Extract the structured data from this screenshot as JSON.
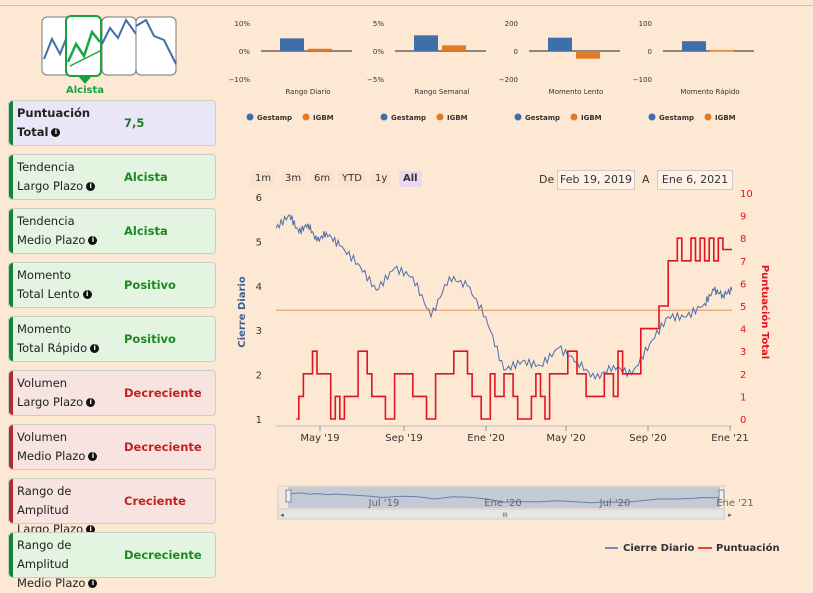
{
  "header": {
    "trend_thumbnail_label": "Alcista"
  },
  "cards": [
    {
      "id": "puntuacion",
      "line1": "Puntuación",
      "line2": "Total",
      "value": "7,5",
      "tone": "purple",
      "value_color": "#1a7a2a"
    },
    {
      "id": "tend-largo",
      "line1": "Tendencia",
      "line2": "Largo Plazo",
      "value": "Alcista",
      "tone": "green",
      "value_color": "#1a8a22"
    },
    {
      "id": "tend-medio",
      "line1": "Tendencia",
      "line2": "Medio Plazo",
      "value": "Alcista",
      "tone": "green",
      "value_color": "#1a8a22"
    },
    {
      "id": "mom-lento",
      "line1": "Momento",
      "line2": "Total Lento",
      "value": "Positivo",
      "tone": "green",
      "value_color": "#1a8a22"
    },
    {
      "id": "mom-rapido",
      "line1": "Momento",
      "line2": "Total Rápido",
      "value": "Positivo",
      "tone": "green",
      "value_color": "#1a8a22"
    },
    {
      "id": "vol-largo",
      "line1": "Volumen",
      "line2": "Largo Plazo",
      "value": "Decreciente",
      "tone": "red",
      "value_color": "#c4211f"
    },
    {
      "id": "vol-medio",
      "line1": "Volumen",
      "line2": "Medio Plazo",
      "value": "Decreciente",
      "tone": "red",
      "value_color": "#c4211f"
    },
    {
      "id": "rango-largo",
      "line1": "Rango de Amplitud",
      "line2": "Largo Plazo",
      "value": "Creciente",
      "tone": "red",
      "value_color": "#c4211f"
    },
    {
      "id": "rango-medio",
      "line1": "Rango de Amplitud",
      "line2": "Medio Plazo",
      "value": "Decreciente",
      "tone": "green",
      "value_color": "#1a8a22"
    }
  ],
  "colors": {
    "gestamp": "#3f6ea8",
    "igbm": "#e07a26",
    "price": "#4e6fa6",
    "score": "#e0141e",
    "refline": "#e8a070"
  },
  "mini_charts": [
    {
      "title": "Rango Diario",
      "ticks": [
        "10%",
        "0%",
        "−10%"
      ],
      "ylim": [
        -10,
        10
      ],
      "gestamp": 4.5,
      "igbm": 0.8
    },
    {
      "title": "Rango Semanal",
      "ticks": [
        "5%",
        "0%",
        "−5%"
      ],
      "ylim": [
        -5,
        5
      ],
      "gestamp": 2.8,
      "igbm": 1.0
    },
    {
      "title": "Momento Lento",
      "ticks": [
        "200",
        "0",
        "−200"
      ],
      "ylim": [
        -200,
        200
      ],
      "gestamp": 95,
      "igbm": -55
    },
    {
      "title": "Momento Rápido",
      "ticks": [
        "100",
        "0",
        "−100"
      ],
      "ylim": [
        -100,
        100
      ],
      "gestamp": 35,
      "igbm": 3
    }
  ],
  "legend": {
    "gestamp": "Gestamp",
    "igbm": "IGBM"
  },
  "range_buttons": [
    {
      "label": "1m",
      "selected": false
    },
    {
      "label": "3m",
      "selected": false
    },
    {
      "label": "6m",
      "selected": false
    },
    {
      "label": "YTD",
      "selected": false
    },
    {
      "label": "1y",
      "selected": false
    },
    {
      "label": "All",
      "selected": true
    }
  ],
  "date_range": {
    "from_label": "De",
    "from": "Feb 19, 2019",
    "to_label": "A",
    "to": "Ene 6, 2021"
  },
  "navigator_labels": [
    "Jul '19",
    "Ene '20",
    "Jul '20",
    "Ene '21"
  ],
  "navigator_grip": "III",
  "chart_data": {
    "type": "line",
    "x_ticks": [
      "May '19",
      "Sep '19",
      "Ene '20",
      "May '20",
      "Sep '20",
      "Ene '21"
    ],
    "y_left": {
      "label": "Cierre Diario",
      "ticks": [
        1,
        2,
        3,
        4,
        5,
        6
      ],
      "ylim": [
        1,
        6
      ]
    },
    "y_right": {
      "label": "Puntuación Total",
      "ticks": [
        0,
        1,
        2,
        3,
        4,
        5,
        6,
        7,
        8,
        9,
        10
      ],
      "ylim": [
        0,
        10
      ]
    },
    "reference_line": 3.45,
    "series": [
      {
        "name": "Cierre Diario",
        "axis": "left",
        "x": [
          0,
          3,
          5,
          7,
          9,
          11,
          14,
          18,
          22,
          26,
          30,
          34,
          38,
          42,
          46,
          50,
          54,
          58,
          62,
          66,
          70,
          74,
          78,
          82,
          86,
          90,
          94,
          96,
          98,
          100
        ],
        "y": [
          5.3,
          5.6,
          5.2,
          5.4,
          5.0,
          5.2,
          4.9,
          4.5,
          3.9,
          4.4,
          4.2,
          3.3,
          4.2,
          4.0,
          3.3,
          2.1,
          2.3,
          2.2,
          2.6,
          2.3,
          1.9,
          2.2,
          2.0,
          2.7,
          3.3,
          3.3,
          3.6,
          3.9,
          3.8,
          3.9
        ]
      },
      {
        "name": "Puntuación",
        "axis": "right",
        "x": [
          4.5,
          5,
          6,
          8,
          9,
          12,
          13,
          14,
          15,
          16,
          18,
          20,
          21,
          24,
          25,
          26,
          27,
          30,
          31,
          33,
          35,
          37,
          39,
          41,
          42,
          43,
          44,
          45,
          46,
          47,
          48,
          49,
          50,
          52,
          53,
          55,
          56,
          57,
          58,
          59,
          60,
          62,
          64,
          66,
          68,
          70,
          72,
          73,
          74,
          75,
          76,
          78,
          80,
          82,
          84,
          86,
          88,
          89,
          90,
          91,
          92,
          93,
          94,
          95,
          96,
          97,
          98,
          99,
          100
        ],
        "y": [
          0,
          1,
          2,
          3,
          2,
          0,
          1,
          0,
          1,
          1,
          3,
          2,
          1,
          0,
          0,
          2,
          2,
          1,
          1,
          0,
          2,
          2,
          3,
          3,
          2,
          1,
          1,
          0,
          0,
          2,
          1,
          1,
          2,
          1,
          0,
          0,
          1,
          2,
          1,
          0,
          2,
          2,
          3,
          2,
          1,
          1,
          2,
          2,
          1,
          3,
          2,
          2,
          4,
          4,
          5,
          7,
          8,
          7,
          7,
          8,
          7,
          8,
          7,
          8,
          7,
          8,
          7.5,
          7.5,
          7.5
        ]
      }
    ],
    "legend": [
      "Cierre Diario",
      "Puntuación"
    ]
  }
}
